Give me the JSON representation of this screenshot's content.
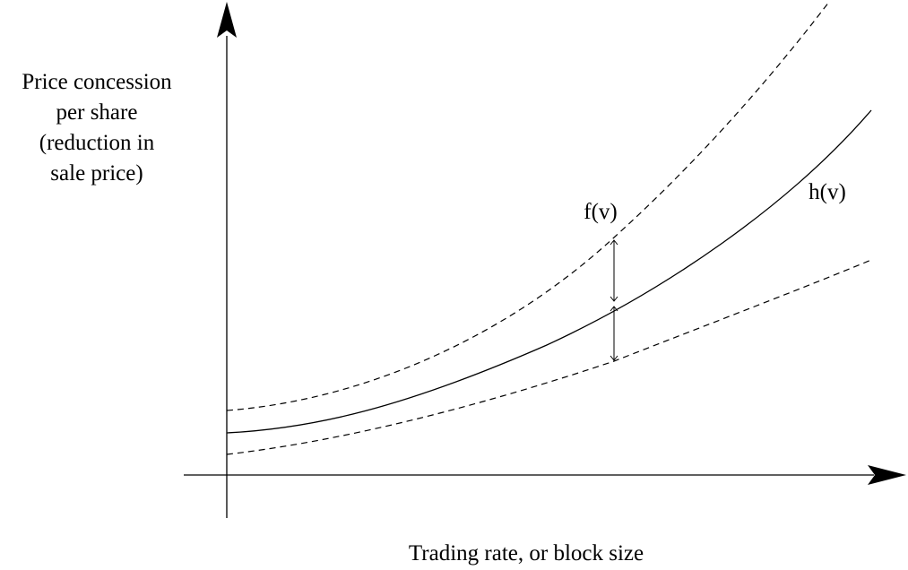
{
  "diagram": {
    "y_axis_label_lines": [
      "Price concession",
      "per share",
      "(reduction in",
      "sale price)"
    ],
    "x_axis_label": "Trading rate, or block size",
    "curves": {
      "upper_label": "f(v)",
      "middle_label": "h(v)"
    },
    "colors": {
      "ink": "#000000",
      "background": "#ffffff"
    }
  }
}
